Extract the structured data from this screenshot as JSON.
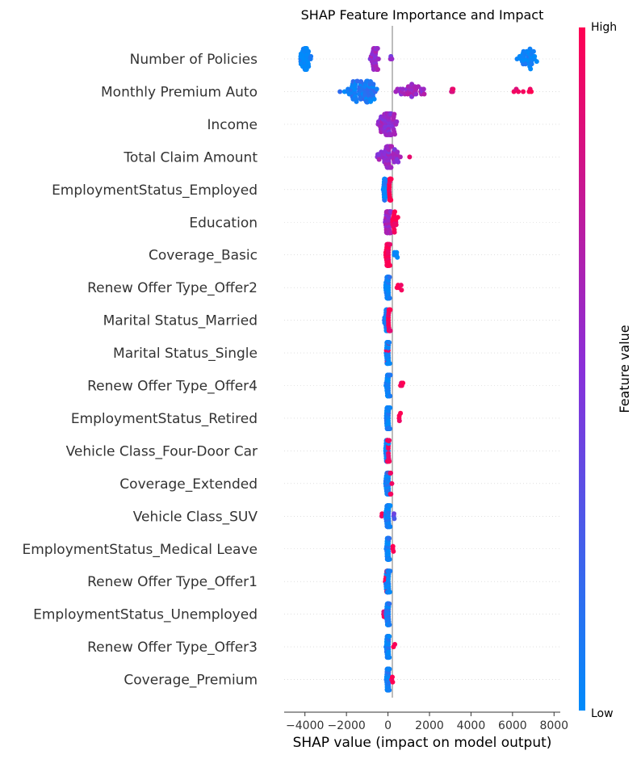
{
  "chart_data": {
    "type": "scatter",
    "subtype": "shap-beeswarm",
    "title": "SHAP Feature Importance and Impact",
    "xlabel": "SHAP value (impact on model output)",
    "xlim": [
      -5000,
      8300
    ],
    "xticks": [
      -4000,
      -2000,
      0,
      2000,
      4000,
      6000,
      8000
    ],
    "xtick_labels": [
      "−4000",
      "−2000",
      "0",
      "2000",
      "4000",
      "6000",
      "8000"
    ],
    "colorbar": {
      "title": "Feature value",
      "high_label": "High",
      "low_label": "Low",
      "low_color": "#008bfb",
      "high_color": "#ff0052"
    },
    "features": [
      {
        "name": "Number of Policies",
        "clusters": [
          {
            "center": -4000,
            "spread": 700,
            "n": 40,
            "value": 0.0
          },
          {
            "center": -650,
            "spread": 500,
            "n": 30,
            "value": 0.55
          },
          {
            "center": 150,
            "spread": 120,
            "n": 3,
            "value": 0.5
          },
          {
            "center": 6700,
            "spread": 1100,
            "n": 32,
            "value": 0.02
          }
        ]
      },
      {
        "name": "Monthly Premium Auto",
        "clusters": [
          {
            "center": -1300,
            "spread": 2300,
            "n": 70,
            "value": 0.1
          },
          {
            "center": 1200,
            "spread": 2000,
            "n": 32,
            "value": 0.6
          },
          {
            "center": 3100,
            "spread": 200,
            "n": 4,
            "value": 0.85
          },
          {
            "center": 6500,
            "spread": 1400,
            "n": 7,
            "value": 0.95
          }
        ]
      },
      {
        "name": "Income",
        "clusters": [
          {
            "center": 0,
            "spread": 1100,
            "n": 70,
            "value": 0.55
          }
        ]
      },
      {
        "name": "Total Claim Amount",
        "clusters": [
          {
            "center": 0,
            "spread": 1500,
            "n": 60,
            "value": 0.55
          },
          {
            "center": 1050,
            "spread": 80,
            "n": 1,
            "value": 0.8
          }
        ]
      },
      {
        "name": "EmploymentStatus_Employed",
        "clusters": [
          {
            "center": -150,
            "spread": 200,
            "n": 25,
            "value": 0.05
          },
          {
            "center": 100,
            "spread": 200,
            "n": 30,
            "value": 1.0
          }
        ]
      },
      {
        "name": "Education",
        "clusters": [
          {
            "center": 0,
            "spread": 500,
            "n": 45,
            "value": 0.6
          },
          {
            "center": 300,
            "spread": 550,
            "n": 15,
            "value": 0.95
          }
        ]
      },
      {
        "name": "Coverage_Basic",
        "clusters": [
          {
            "center": 0,
            "spread": 300,
            "n": 45,
            "value": 1.0
          },
          {
            "center": 400,
            "spread": 350,
            "n": 5,
            "value": 0.05
          }
        ]
      },
      {
        "name": "Renew Offer Type_Offer2",
        "clusters": [
          {
            "center": 0,
            "spread": 300,
            "n": 45,
            "value": 0.05
          },
          {
            "center": 550,
            "spread": 700,
            "n": 5,
            "value": 1.0
          }
        ]
      },
      {
        "name": "Marital Status_Married",
        "clusters": [
          {
            "center": -100,
            "spread": 250,
            "n": 20,
            "value": 0.05
          },
          {
            "center": 50,
            "spread": 200,
            "n": 25,
            "value": 0.95
          }
        ]
      },
      {
        "name": "Marital Status_Single",
        "clusters": [
          {
            "center": 0,
            "spread": 250,
            "n": 40,
            "value": 0.05
          },
          {
            "center": 0,
            "spread": 450,
            "n": 4,
            "value": 0.95
          }
        ]
      },
      {
        "name": "Renew Offer Type_Offer4",
        "clusters": [
          {
            "center": 0,
            "spread": 250,
            "n": 45,
            "value": 0.05
          },
          {
            "center": 650,
            "spread": 500,
            "n": 4,
            "value": 1.0
          }
        ]
      },
      {
        "name": "EmploymentStatus_Retired",
        "clusters": [
          {
            "center": 0,
            "spread": 250,
            "n": 45,
            "value": 0.05
          },
          {
            "center": 600,
            "spread": 300,
            "n": 4,
            "value": 1.0
          }
        ]
      },
      {
        "name": "Vehicle Class_Four-Door Car",
        "clusters": [
          {
            "center": -50,
            "spread": 250,
            "n": 25,
            "value": 0.05
          },
          {
            "center": 0,
            "spread": 250,
            "n": 20,
            "value": 0.95
          }
        ]
      },
      {
        "name": "Coverage_Extended",
        "clusters": [
          {
            "center": 0,
            "spread": 300,
            "n": 40,
            "value": 0.05
          },
          {
            "center": 100,
            "spread": 250,
            "n": 8,
            "value": 0.95
          }
        ]
      },
      {
        "name": "Vehicle Class_SUV",
        "clusters": [
          {
            "center": 0,
            "spread": 350,
            "n": 40,
            "value": 0.05
          },
          {
            "center": -300,
            "spread": 100,
            "n": 2,
            "value": 0.95
          },
          {
            "center": 300,
            "spread": 100,
            "n": 3,
            "value": 0.3
          }
        ]
      },
      {
        "name": "EmploymentStatus_Medical Leave",
        "clusters": [
          {
            "center": 0,
            "spread": 250,
            "n": 40,
            "value": 0.05
          },
          {
            "center": 250,
            "spread": 150,
            "n": 3,
            "value": 1.0
          }
        ]
      },
      {
        "name": "Renew Offer Type_Offer1",
        "clusters": [
          {
            "center": 0,
            "spread": 300,
            "n": 35,
            "value": 0.05
          },
          {
            "center": -50,
            "spread": 250,
            "n": 10,
            "value": 0.95
          }
        ]
      },
      {
        "name": "EmploymentStatus_Unemployed",
        "clusters": [
          {
            "center": 0,
            "spread": 250,
            "n": 40,
            "value": 0.05
          },
          {
            "center": -200,
            "spread": 150,
            "n": 3,
            "value": 0.95
          }
        ]
      },
      {
        "name": "Renew Offer Type_Offer3",
        "clusters": [
          {
            "center": 0,
            "spread": 250,
            "n": 40,
            "value": 0.05
          },
          {
            "center": 300,
            "spread": 150,
            "n": 2,
            "value": 1.0
          }
        ]
      },
      {
        "name": "Coverage_Premium",
        "clusters": [
          {
            "center": 0,
            "spread": 250,
            "n": 40,
            "value": 0.05
          },
          {
            "center": 200,
            "spread": 150,
            "n": 3,
            "value": 0.95
          }
        ]
      }
    ]
  }
}
